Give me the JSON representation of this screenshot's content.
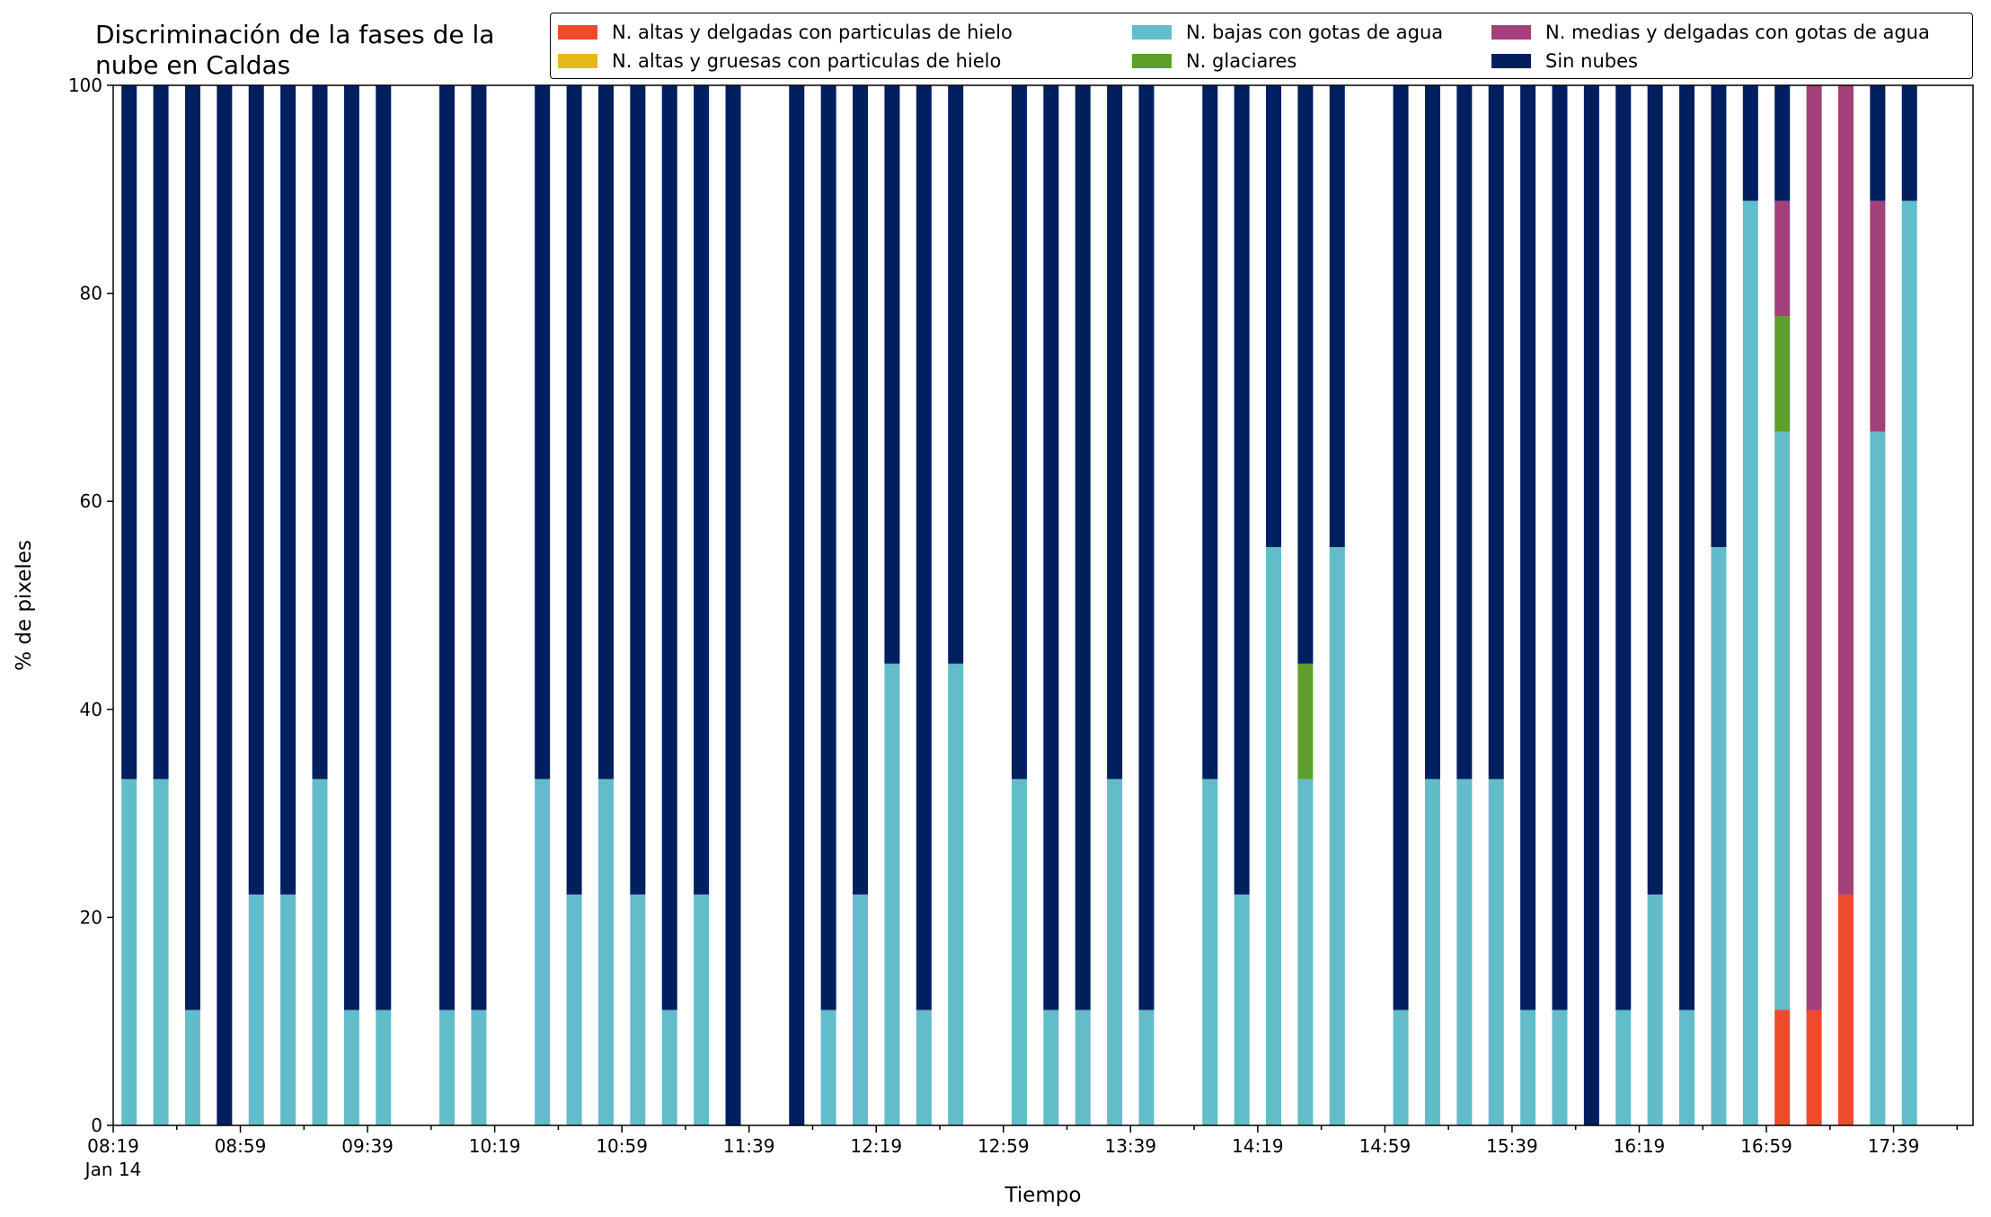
{
  "chart_data": {
    "type": "bar",
    "stacked": true,
    "title": "Discriminación de la fases de la\nnube en Caldas",
    "xlabel": "Tiempo",
    "ylabel": "% de pixeles",
    "ylim": [
      0,
      100
    ],
    "yticks": [
      "0",
      "20",
      "40",
      "60",
      "80",
      "100"
    ],
    "xticks": [
      {
        "t": "08:19",
        "sub": "Jan 14"
      },
      {
        "t": "08:59",
        "sub": ""
      },
      {
        "t": "09:39",
        "sub": ""
      },
      {
        "t": "10:19",
        "sub": ""
      },
      {
        "t": "10:59",
        "sub": ""
      },
      {
        "t": "11:39",
        "sub": ""
      },
      {
        "t": "12:19",
        "sub": ""
      },
      {
        "t": "12:59",
        "sub": ""
      },
      {
        "t": "13:39",
        "sub": ""
      },
      {
        "t": "14:19",
        "sub": ""
      },
      {
        "t": "14:59",
        "sub": ""
      },
      {
        "t": "15:39",
        "sub": ""
      },
      {
        "t": "16:19",
        "sub": ""
      },
      {
        "t": "16:59",
        "sub": ""
      },
      {
        "t": "17:39",
        "sub": ""
      }
    ],
    "x_range": [
      "08:19",
      "18:04"
    ],
    "grid": false,
    "legend_position": "top-right",
    "x": [
      "08:24",
      "08:34",
      "08:44",
      "08:54",
      "09:04",
      "09:14",
      "09:24",
      "09:34",
      "09:44",
      "10:04",
      "10:14",
      "10:34",
      "10:44",
      "10:54",
      "11:04",
      "11:14",
      "11:24",
      "11:34",
      "11:54",
      "12:04",
      "12:14",
      "12:24",
      "12:34",
      "12:44",
      "13:04",
      "13:14",
      "13:24",
      "13:34",
      "13:44",
      "14:04",
      "14:14",
      "14:24",
      "14:34",
      "14:44",
      "15:04",
      "15:14",
      "15:24",
      "15:34",
      "15:44",
      "15:54",
      "16:04",
      "16:14",
      "16:24",
      "16:34",
      "16:44",
      "16:54",
      "17:04",
      "17:14",
      "17:24",
      "17:34",
      "17:44"
    ],
    "series": [
      {
        "name": "N. altas y delgadas con particulas de hielo",
        "color": "#ef4a2b",
        "values": [
          0,
          0,
          0,
          0,
          0,
          0,
          0,
          0,
          0,
          0,
          0,
          0,
          0,
          0,
          0,
          0,
          0,
          0,
          0,
          0,
          0,
          0,
          0,
          0,
          0,
          0,
          0,
          0,
          0,
          0,
          0,
          0,
          0,
          0,
          0,
          0,
          0,
          0,
          0,
          0,
          0,
          0,
          0,
          0,
          0,
          0,
          11.1,
          11.1,
          22.2,
          0,
          0
        ]
      },
      {
        "name": "N. altas y gruesas con particulas de hielo",
        "color": "#e7b81c",
        "values": [
          0,
          0,
          0,
          0,
          0,
          0,
          0,
          0,
          0,
          0,
          0,
          0,
          0,
          0,
          0,
          0,
          0,
          0,
          0,
          0,
          0,
          0,
          0,
          0,
          0,
          0,
          0,
          0,
          0,
          0,
          0,
          0,
          0,
          0,
          0,
          0,
          0,
          0,
          0,
          0,
          0,
          0,
          0,
          0,
          0,
          0,
          0,
          0,
          0,
          0,
          0
        ]
      },
      {
        "name": "N. bajas con gotas de agua",
        "color": "#63bcc9",
        "values": [
          33.3,
          33.3,
          11.1,
          0,
          22.2,
          22.2,
          33.3,
          11.1,
          11.1,
          11.1,
          11.1,
          33.3,
          22.2,
          33.3,
          22.2,
          11.1,
          22.2,
          0,
          0,
          11.1,
          22.2,
          44.4,
          11.1,
          44.4,
          33.3,
          11.1,
          11.1,
          33.3,
          11.1,
          33.3,
          22.2,
          55.6,
          33.3,
          55.6,
          11.1,
          33.3,
          33.3,
          33.3,
          11.1,
          11.1,
          0,
          11.1,
          22.2,
          11.1,
          55.6,
          88.9,
          55.6,
          0,
          0,
          66.7,
          88.9
        ]
      },
      {
        "name": "N. glaciares",
        "color": "#5d9e2c",
        "values": [
          0,
          0,
          0,
          0,
          0,
          0,
          0,
          0,
          0,
          0,
          0,
          0,
          0,
          0,
          0,
          0,
          0,
          0,
          0,
          0,
          0,
          0,
          0,
          0,
          0,
          0,
          0,
          0,
          0,
          0,
          0,
          0,
          11.1,
          0,
          0,
          0,
          0,
          0,
          0,
          0,
          0,
          0,
          0,
          0,
          0,
          0,
          11.1,
          0,
          0,
          0,
          0
        ]
      },
      {
        "name": "N. medias y delgadas con gotas de agua",
        "color": "#a2407b",
        "values": [
          0,
          0,
          0,
          0,
          0,
          0,
          0,
          0,
          0,
          0,
          0,
          0,
          0,
          0,
          0,
          0,
          0,
          0,
          0,
          0,
          0,
          0,
          0,
          0,
          0,
          0,
          0,
          0,
          0,
          0,
          0,
          0,
          0,
          0,
          0,
          0,
          0,
          0,
          0,
          0,
          0,
          0,
          0,
          0,
          0,
          0,
          11.1,
          88.9,
          77.8,
          22.2,
          0
        ]
      },
      {
        "name": "Sin nubes",
        "color": "#001f5f",
        "values": [
          66.7,
          66.7,
          88.9,
          100,
          77.8,
          77.8,
          66.7,
          88.9,
          88.9,
          88.9,
          88.9,
          66.7,
          77.8,
          66.7,
          77.8,
          88.9,
          77.8,
          100,
          100,
          88.9,
          77.8,
          55.6,
          88.9,
          55.6,
          66.7,
          88.9,
          88.9,
          66.7,
          88.9,
          66.7,
          77.8,
          44.4,
          55.6,
          44.4,
          88.9,
          66.7,
          66.7,
          66.7,
          88.9,
          88.9,
          100,
          88.9,
          77.8,
          88.9,
          44.4,
          11.1,
          11.1,
          0,
          0,
          11.1,
          11.1
        ]
      }
    ]
  }
}
